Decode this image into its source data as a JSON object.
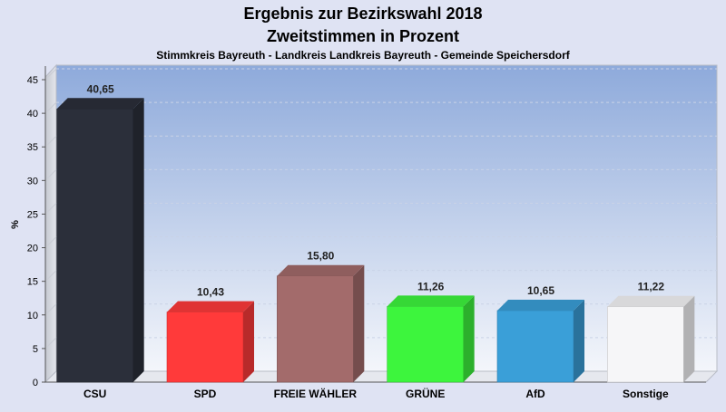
{
  "chart_data": {
    "type": "bar",
    "title": "Ergebnis zur Bezirkswahl 2018",
    "subtitle": "Zweitstimmen in Prozent",
    "subsubtitle": "Stimmkreis Bayreuth - Landkreis Landkreis Bayreuth - Gemeinde Speichersdorf",
    "ylabel": "%",
    "xlabel": "",
    "ylim": [
      0,
      45
    ],
    "yticks": [
      "0",
      "5",
      "10",
      "15",
      "20",
      "25",
      "30",
      "35",
      "40",
      "45"
    ],
    "categories": [
      "CSU",
      "SPD",
      "FREIE WÄHLER",
      "GRÜNE",
      "AfD",
      "Sonstige"
    ],
    "values": [
      40.65,
      10.43,
      15.8,
      11.26,
      10.65,
      11.22
    ],
    "value_labels": [
      "40,65",
      "10,43",
      "15,80",
      "11,26",
      "10,65",
      "11,22"
    ],
    "colors": [
      "#2b2f3a",
      "#ff3a3a",
      "#a36b6b",
      "#3df53d",
      "#3a9fd8",
      "#f6f6f8"
    ],
    "grid": true,
    "legend": "none"
  }
}
